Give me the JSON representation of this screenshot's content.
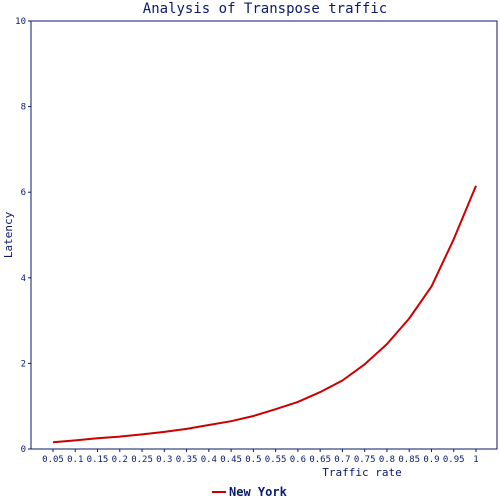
{
  "chart_data": {
    "type": "line",
    "title": "Analysis of Transpose traffic",
    "xlabel": "Traffic rate",
    "ylabel": "Latency",
    "x": [
      0.05,
      0.1,
      0.15,
      0.2,
      0.25,
      0.3,
      0.35,
      0.4,
      0.45,
      0.5,
      0.55,
      0.6,
      0.65,
      0.7,
      0.75,
      0.8,
      0.85,
      0.9,
      0.95,
      1
    ],
    "x_tick_labels": [
      "0.05",
      "0.1",
      "0.15",
      "0.2",
      "0.25",
      "0.3",
      "0.35",
      "0.4",
      "0.45",
      "0.5",
      "0.55",
      "0.6",
      "0.65",
      "0.7",
      "0.75",
      "0.8",
      "0.85",
      "0.9",
      "0.95",
      "1"
    ],
    "ylim": [
      0,
      10
    ],
    "y_ticks": [
      0,
      2,
      4,
      6,
      8,
      10
    ],
    "y_tick_labels": [
      "0",
      "2",
      "4",
      "6",
      "8",
      "10"
    ],
    "grid": false,
    "legend_position": "bottom-center",
    "series": [
      {
        "name": "New York",
        "color": "#cc0000",
        "values": [
          0.16,
          0.2,
          0.25,
          0.29,
          0.34,
          0.4,
          0.47,
          0.56,
          0.65,
          0.77,
          0.93,
          1.1,
          1.33,
          1.6,
          1.98,
          2.45,
          3.05,
          3.8,
          4.9,
          6.15
        ]
      }
    ],
    "axis_color": "#0a1a6e"
  }
}
